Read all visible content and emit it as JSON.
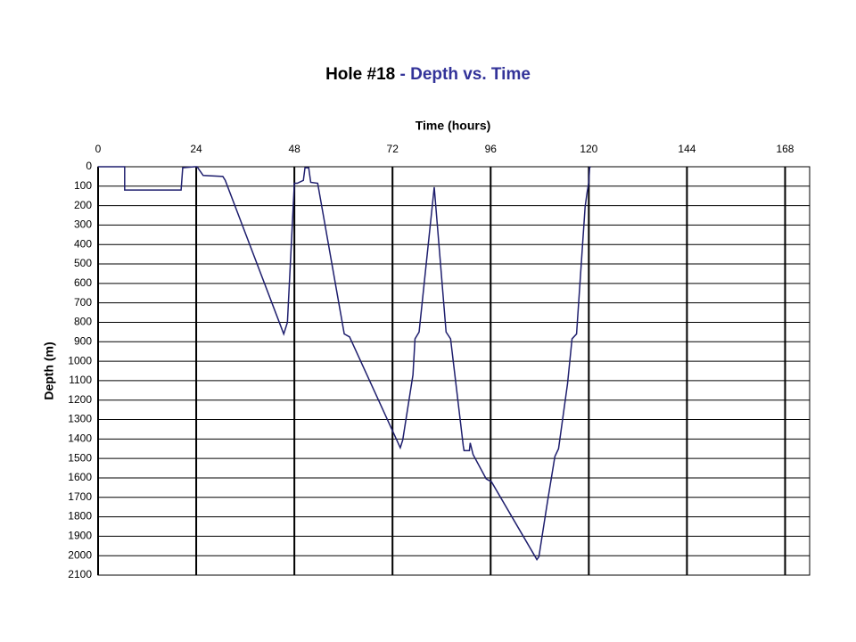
{
  "chart_data": {
    "type": "line",
    "title": [
      "Hole #18",
      "- Depth vs. Time"
    ],
    "title_colors": [
      "#000000",
      "#333399"
    ],
    "x_label": "Time (hours)",
    "y_label": "Depth (m)",
    "x_axis_position": "top",
    "y_inverted": true,
    "color": "#1f1f6e",
    "grid": true,
    "xlim": [
      0,
      174
    ],
    "xticks": [
      0,
      24,
      48,
      72,
      96,
      120,
      144,
      168
    ],
    "ylim": [
      0,
      2100
    ],
    "yticks": [
      0,
      100,
      200,
      300,
      400,
      500,
      600,
      700,
      800,
      900,
      1000,
      1100,
      1200,
      1300,
      1400,
      1500,
      1600,
      1700,
      1800,
      1900,
      2000,
      2100
    ],
    "x": [
      0,
      6.5,
      6.5,
      13.5,
      20.3,
      20.7,
      23.6,
      24.2,
      25.7,
      30.5,
      31.1,
      45.4,
      46.3,
      48,
      48.7,
      50.2,
      50.6,
      51.5,
      52,
      53.7,
      60.2,
      61.5,
      73.9,
      74.5,
      77,
      77.5,
      78.5,
      82.2,
      85.1,
      86.2,
      89.3,
      89.5,
      90.8,
      91,
      91.7,
      94.9,
      96.2,
      107.3,
      107.8,
      109.8,
      111.7,
      112.6,
      114.8,
      115.9,
      117,
      119.1,
      119.6,
      120,
      120.2,
      120.4
    ],
    "values": [
      0,
      0,
      120,
      120,
      120,
      5,
      0,
      0,
      45,
      50,
      70,
      860,
      800,
      85,
      85,
      70,
      5,
      5,
      80,
      85,
      860,
      875,
      1445,
      1405,
      1070,
      885,
      850,
      105,
      850,
      885,
      1435,
      1460,
      1460,
      1420,
      1480,
      1605,
      1620,
      2020,
      2005,
      1735,
      1490,
      1450,
      1115,
      885,
      860,
      205,
      130,
      80,
      5,
      0
    ]
  }
}
